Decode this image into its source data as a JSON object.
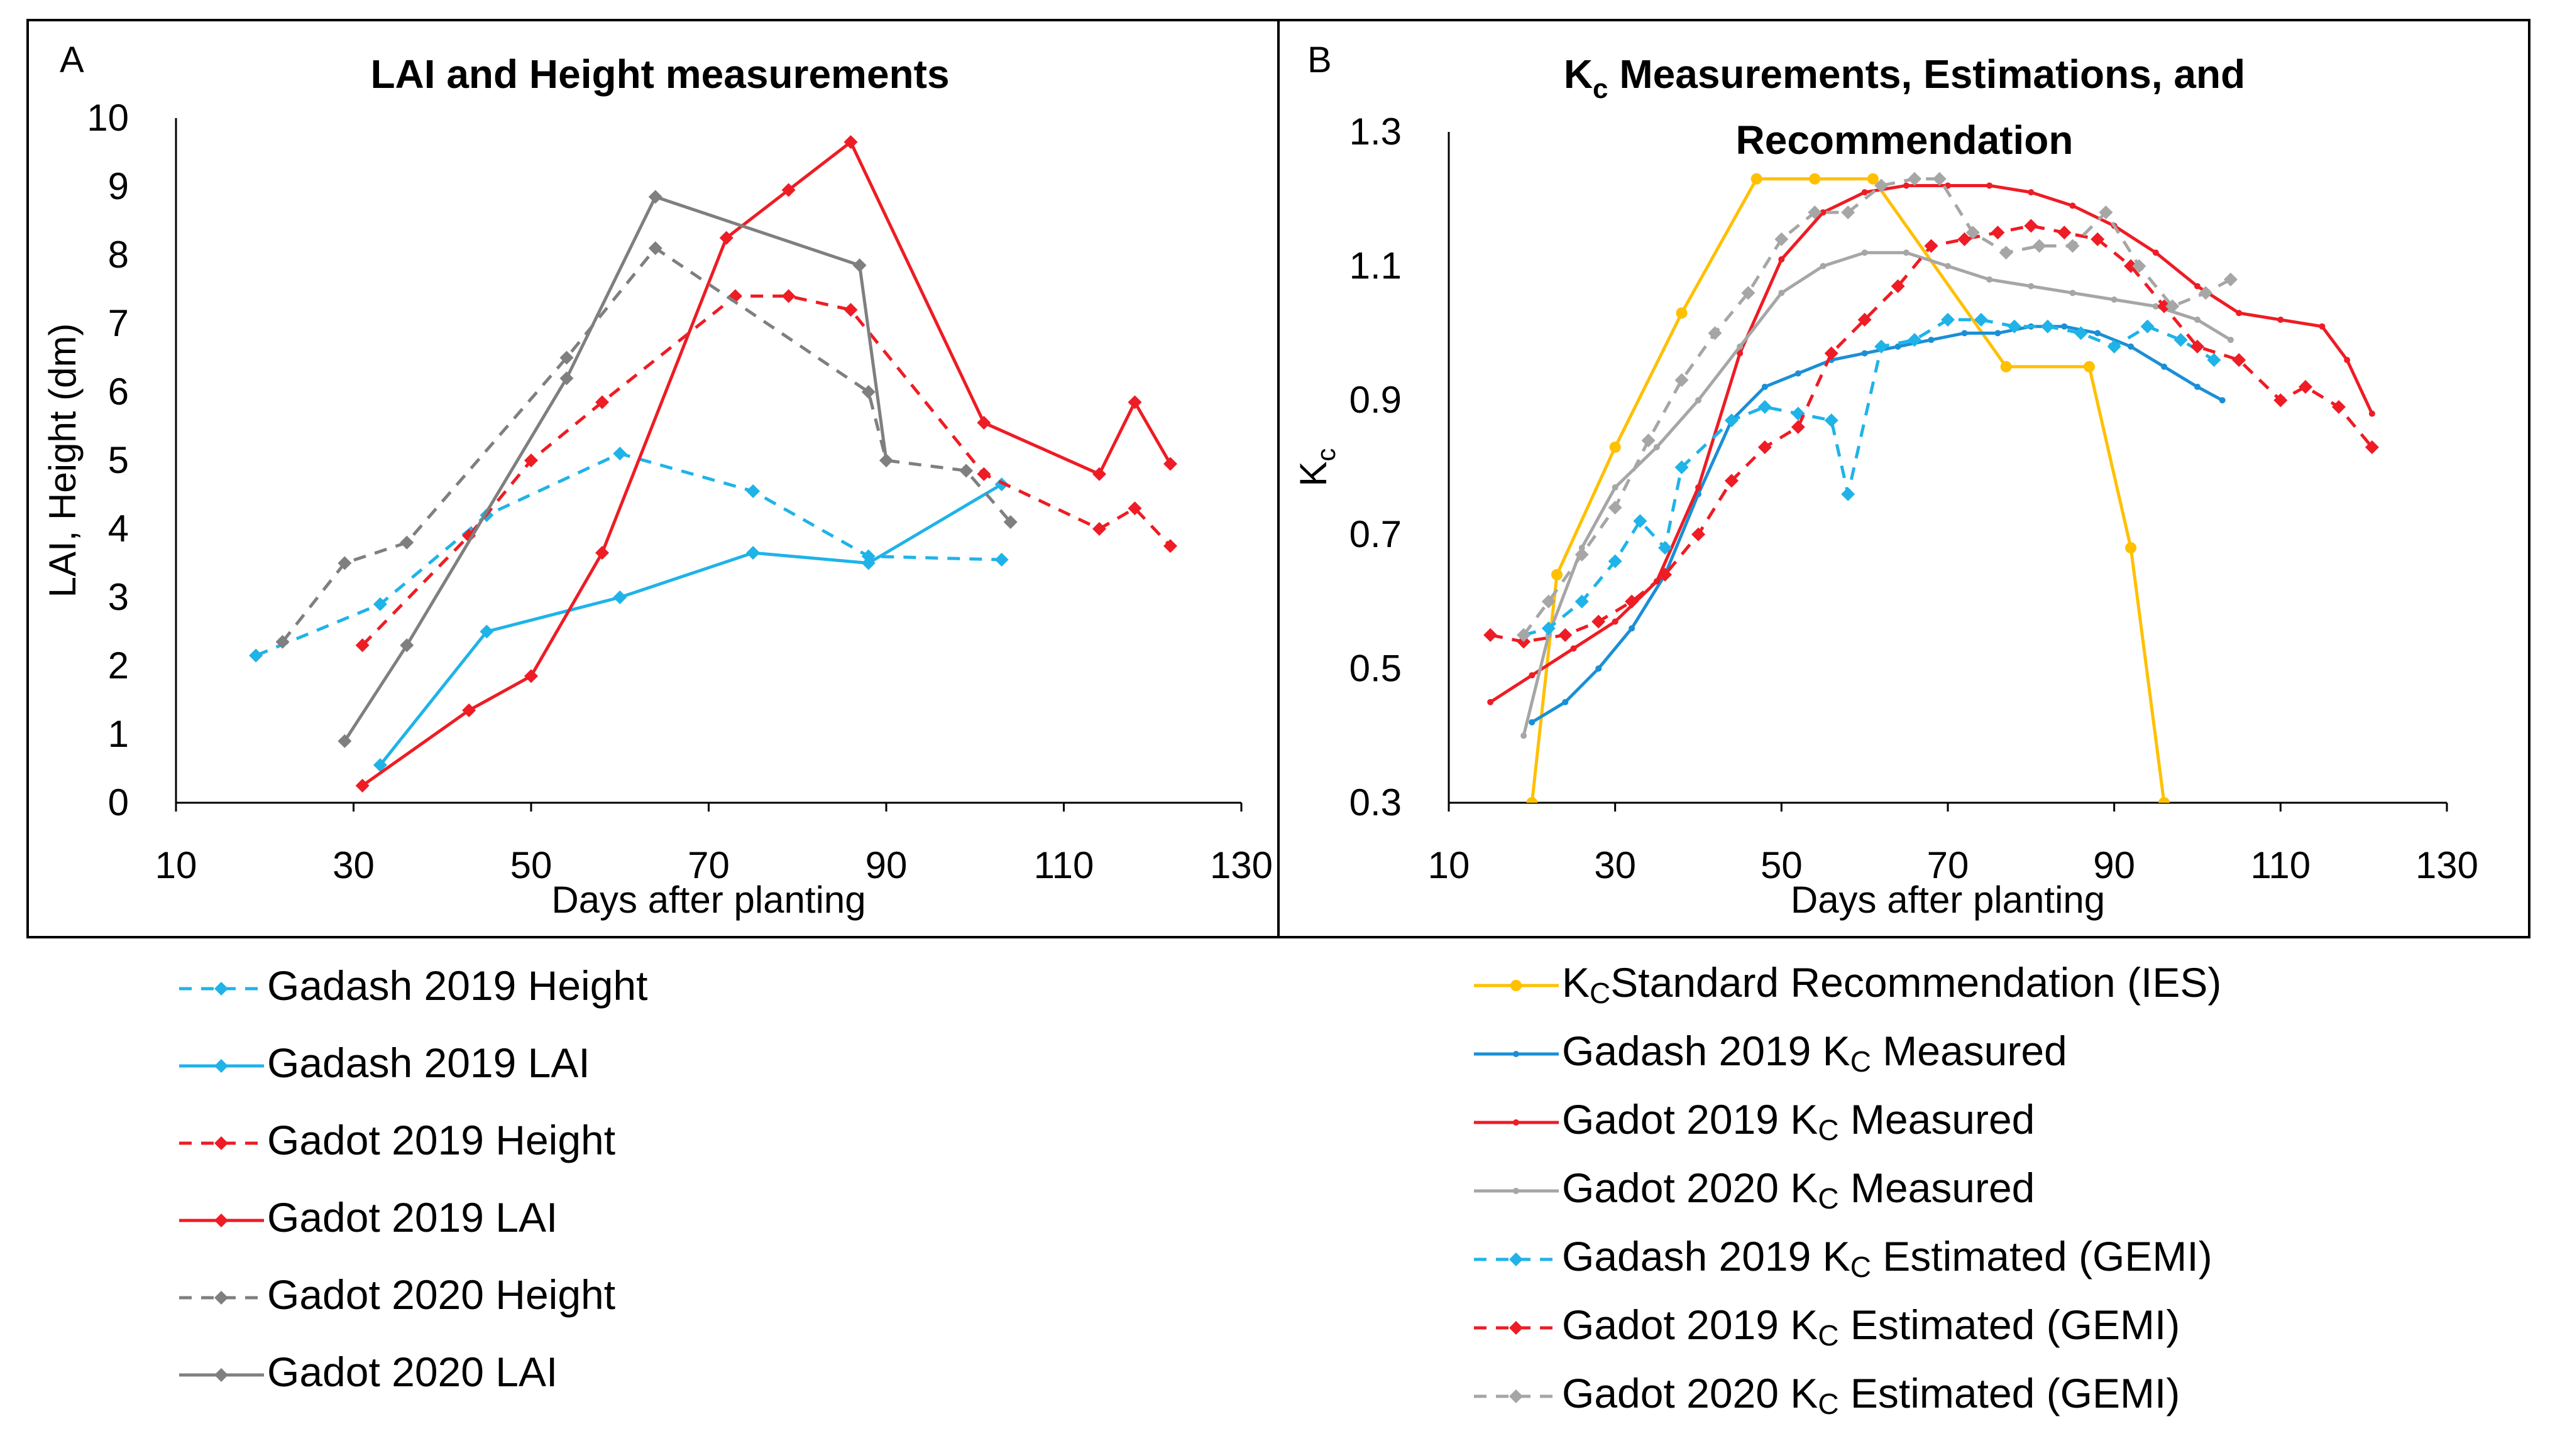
{
  "figure": {
    "type": "chart_figure"
  },
  "chart_data": [
    {
      "panel": "A",
      "type": "line",
      "title": "LAI and Height measurements",
      "xlabel": "Days after planting",
      "ylabel": "LAI, Height (dm)",
      "xlim": [
        10,
        130
      ],
      "ylim": [
        0,
        10
      ],
      "xticks": [
        10,
        30,
        50,
        70,
        90,
        110,
        130
      ],
      "yticks": [
        0,
        1,
        2,
        3,
        4,
        5,
        6,
        7,
        8,
        9,
        10
      ],
      "grid": false,
      "legend_position": "bottom",
      "series": [
        {
          "name": "Gadash 2019 Height",
          "color": "#1fb3e8",
          "dash": "dashed",
          "marker": "diamond",
          "x": [
            19,
            33,
            45,
            60,
            75,
            88,
            103
          ],
          "y": [
            2.15,
            2.9,
            4.2,
            5.1,
            4.55,
            3.6,
            3.55
          ]
        },
        {
          "name": "Gadash 2019 LAI",
          "color": "#1fb3e8",
          "dash": "solid",
          "marker": "diamond",
          "x": [
            33,
            45,
            60,
            75,
            88,
            103
          ],
          "y": [
            0.55,
            2.5,
            3.0,
            3.65,
            3.5,
            4.65
          ]
        },
        {
          "name": "Gadot 2019 Height",
          "color": "#ee1c24",
          "dash": "dashed",
          "marker": "diamond",
          "x": [
            31,
            43,
            50,
            58,
            73,
            79,
            86,
            101,
            114,
            118,
            122
          ],
          "y": [
            2.3,
            3.9,
            5.0,
            5.85,
            7.4,
            7.4,
            7.2,
            4.8,
            4.0,
            4.3,
            3.75
          ]
        },
        {
          "name": "Gadot 2019 LAI",
          "color": "#ee1c24",
          "dash": "solid",
          "marker": "diamond",
          "x": [
            31,
            43,
            50,
            58,
            72,
            79,
            86,
            101,
            114,
            118,
            122
          ],
          "y": [
            0.25,
            1.35,
            1.85,
            3.65,
            8.25,
            8.95,
            9.65,
            5.55,
            4.8,
            5.85,
            4.95
          ]
        },
        {
          "name": "Gadot 2020 Height",
          "color": "#7f7f7f",
          "dash": "dashed",
          "marker": "diamond",
          "x": [
            22,
            29,
            36,
            54,
            64,
            88,
            90,
            99,
            104
          ],
          "y": [
            2.35,
            3.5,
            3.8,
            6.5,
            8.1,
            6.0,
            5.0,
            4.85,
            4.1
          ]
        },
        {
          "name": "Gadot 2020 LAI",
          "color": "#7f7f7f",
          "dash": "solid",
          "marker": "diamond",
          "x": [
            29,
            36,
            54,
            64,
            87,
            90
          ],
          "y": [
            0.9,
            2.3,
            6.2,
            8.85,
            7.85,
            5.0
          ]
        }
      ]
    },
    {
      "panel": "B",
      "type": "line",
      "title_prefix": "K",
      "title_sub": "c",
      "title_rest": " Measurements, Estimations, and",
      "title_line2": "Recommendation",
      "xlabel": "Days after planting",
      "ylabel": "K",
      "ylabel_sub": "c",
      "xlim": [
        10,
        130
      ],
      "ylim": [
        0.3,
        1.3
      ],
      "xticks": [
        10,
        30,
        50,
        70,
        90,
        110,
        130
      ],
      "yticks": [
        0.3,
        0.5,
        0.7,
        0.9,
        1.1,
        1.3
      ],
      "grid": false,
      "legend_position": "bottom",
      "series": [
        {
          "name": "Standard Recommendation (IES)",
          "kc_sub": "C",
          "color": "#ffc000",
          "dash": "solid",
          "marker": "circle",
          "x": [
            20,
            23,
            30,
            38,
            47,
            54,
            61,
            77,
            87,
            92,
            96
          ],
          "y": [
            0.3,
            0.64,
            0.83,
            1.03,
            1.23,
            1.23,
            1.23,
            0.95,
            0.95,
            0.68,
            0.3
          ]
        },
        {
          "name": "Gadash 2019 ",
          "name_after": " Measured",
          "kc_sub": "C",
          "color": "#1a8fd6",
          "dash": "solid",
          "marker": "smalldot",
          "x": [
            20,
            24,
            28,
            32,
            36,
            40,
            44,
            48,
            52,
            56,
            60,
            64,
            68,
            72,
            76,
            80,
            84,
            88,
            92,
            96,
            100,
            103
          ],
          "y": [
            0.42,
            0.45,
            0.5,
            0.56,
            0.64,
            0.76,
            0.87,
            0.92,
            0.94,
            0.96,
            0.97,
            0.98,
            0.99,
            1.0,
            1.0,
            1.01,
            1.01,
            1.0,
            0.98,
            0.95,
            0.92,
            0.9
          ]
        },
        {
          "name": "Gadot 2019 ",
          "name_after": " Measured",
          "kc_sub": "C",
          "color": "#ee1c24",
          "dash": "solid",
          "marker": "smalldot",
          "x": [
            15,
            20,
            25,
            30,
            35,
            40,
            45,
            50,
            55,
            60,
            65,
            70,
            75,
            80,
            85,
            90,
            95,
            100,
            105,
            110,
            115,
            118,
            121
          ],
          "y": [
            0.45,
            0.49,
            0.53,
            0.57,
            0.63,
            0.77,
            0.97,
            1.11,
            1.18,
            1.21,
            1.22,
            1.22,
            1.22,
            1.21,
            1.19,
            1.16,
            1.12,
            1.07,
            1.03,
            1.02,
            1.01,
            0.96,
            0.88
          ]
        },
        {
          "name": "Gadot 2020 ",
          "name_after": " Measured",
          "kc_sub": "C",
          "color": "#a6a6a6",
          "dash": "solid",
          "marker": "smalldot",
          "x": [
            19,
            22,
            26,
            30,
            35,
            40,
            45,
            50,
            55,
            60,
            65,
            70,
            75,
            80,
            85,
            90,
            95,
            100,
            104
          ],
          "y": [
            0.4,
            0.55,
            0.68,
            0.77,
            0.83,
            0.9,
            0.98,
            1.06,
            1.1,
            1.12,
            1.12,
            1.1,
            1.08,
            1.07,
            1.06,
            1.05,
            1.04,
            1.02,
            0.99
          ]
        },
        {
          "name": "Gadash 2019 ",
          "name_after": " Estimated (GEMI)",
          "kc_sub": "C",
          "color": "#1fb3e8",
          "dash": "dashed",
          "marker": "diamond",
          "x": [
            19,
            22,
            26,
            30,
            33,
            36,
            38,
            44,
            48,
            52,
            56,
            58,
            62,
            66,
            70,
            74,
            78,
            82,
            86,
            90,
            94,
            98,
            102
          ],
          "y": [
            0.55,
            0.56,
            0.6,
            0.66,
            0.72,
            0.68,
            0.8,
            0.87,
            0.89,
            0.88,
            0.87,
            0.76,
            0.98,
            0.99,
            1.02,
            1.02,
            1.01,
            1.01,
            1.0,
            0.98,
            1.01,
            0.99,
            0.96
          ]
        },
        {
          "name": "Gadot 2019 ",
          "name_after": " Estimated (GEMI)",
          "kc_sub": "C",
          "color": "#ee1c24",
          "dash": "dashed",
          "marker": "diamond",
          "x": [
            15,
            19,
            24,
            28,
            32,
            36,
            40,
            44,
            48,
            52,
            56,
            60,
            64,
            68,
            72,
            76,
            80,
            84,
            88,
            92,
            96,
            100,
            105,
            110,
            113,
            117,
            121
          ],
          "y": [
            0.55,
            0.54,
            0.55,
            0.57,
            0.6,
            0.64,
            0.7,
            0.78,
            0.83,
            0.86,
            0.97,
            1.02,
            1.07,
            1.13,
            1.14,
            1.15,
            1.16,
            1.15,
            1.14,
            1.1,
            1.04,
            0.98,
            0.96,
            0.9,
            0.92,
            0.89,
            0.83
          ]
        },
        {
          "name": "Gadot 2020 ",
          "name_after": " Estimated (GEMI)",
          "kc_sub": "C",
          "color": "#a6a6a6",
          "dash": "dashed",
          "marker": "diamond",
          "x": [
            19,
            22,
            26,
            30,
            34,
            38,
            42,
            46,
            50,
            54,
            58,
            62,
            66,
            69,
            73,
            77,
            81,
            85,
            89,
            93,
            97,
            101,
            104
          ],
          "y": [
            0.55,
            0.6,
            0.67,
            0.74,
            0.84,
            0.93,
            1.0,
            1.06,
            1.14,
            1.18,
            1.18,
            1.22,
            1.23,
            1.23,
            1.15,
            1.12,
            1.13,
            1.13,
            1.18,
            1.1,
            1.04,
            1.06,
            1.08
          ]
        }
      ]
    }
  ]
}
